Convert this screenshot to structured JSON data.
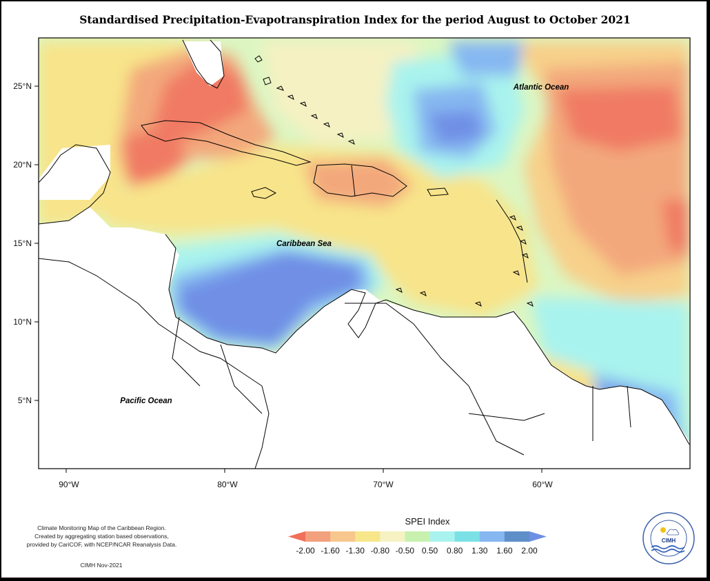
{
  "title": "Standardised Precipitation-Evapotranspiration Index for the period August to October 2021",
  "axes": {
    "y_ticks": [
      "25°N",
      "20°N",
      "15°N",
      "10°N",
      "5°N"
    ],
    "x_ticks": [
      "90°W",
      "80°W",
      "70°W",
      "60°W"
    ]
  },
  "labels": {
    "atlantic": "Atlantic Ocean",
    "caribbean": "Caribbean Sea",
    "pacific": "Pacific Ocean"
  },
  "legend": {
    "title": "SPEI Index",
    "ticks": [
      "-2.00",
      "-1.60",
      "-1.30",
      "-0.80",
      "-0.50",
      "0.50",
      "0.80",
      "1.30",
      "1.60",
      "2.00"
    ],
    "colors": [
      "#f0705a",
      "#f2a07e",
      "#f8c78d",
      "#f7e68a",
      "#f6f2c4",
      "#c8f1b0",
      "#a9f3ee",
      "#7ce1e6",
      "#86b7f1",
      "#5e8fc9",
      "#6f8fe5"
    ]
  },
  "credit": {
    "line1": "Climate Monitoring Map of the Caribbean Region.",
    "line2": "Created by aggregating station based observations,",
    "line3": "provided by CariCOF, with NCEP/NCAR Reanalysis Data."
  },
  "date": "CIMH Nov-2021",
  "logo": {
    "text": "CIMH",
    "ring_text": "Caribbean Institute for Meteorology and Hydrology"
  }
}
